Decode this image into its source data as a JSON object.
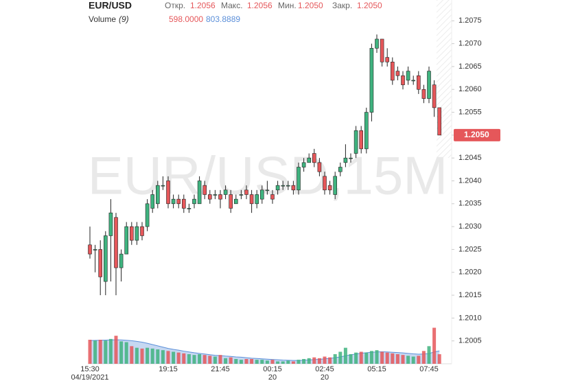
{
  "chart_data": {
    "type": "candlestick",
    "symbol": "EUR/USD",
    "watermark": "EUR/USD,15M",
    "header": {
      "open_label": "Откр.",
      "open": "1.2056",
      "high_label": "Макс.",
      "high": "1.2056",
      "low_label": "Мин.",
      "low": "1.2050",
      "close_label": "Закр.",
      "close": "1.2050",
      "volume_name": "Volume",
      "volume_period": "(9)",
      "volume_value": "598.0000",
      "volume_ma": "803.8889"
    },
    "categories": [
      "15:30",
      null,
      null,
      null,
      null,
      null,
      null,
      null,
      null,
      null,
      null,
      null,
      null,
      null,
      null,
      "19:15",
      null,
      null,
      null,
      null,
      null,
      null,
      null,
      null,
      null,
      "21:45",
      null,
      null,
      null,
      null,
      null,
      null,
      null,
      null,
      null,
      "00:15",
      null,
      null,
      null,
      null,
      null,
      null,
      null,
      null,
      null,
      "02:45",
      null,
      null,
      null,
      null,
      null,
      null,
      null,
      null,
      null,
      "05:15",
      null,
      null,
      null,
      null,
      null,
      null,
      null,
      null,
      null,
      "07:45",
      null,
      null
    ],
    "category_dates": [
      "04/19/2021",
      null,
      null,
      null,
      null,
      null,
      null,
      null,
      null,
      null,
      null,
      null,
      null,
      null,
      null,
      null,
      null,
      null,
      null,
      null,
      null,
      null,
      null,
      null,
      null,
      null,
      null,
      null,
      null,
      null,
      null,
      null,
      null,
      null,
      null,
      "20",
      null,
      null,
      null,
      null,
      null,
      null,
      null,
      null,
      null,
      "20",
      null,
      null,
      null,
      null,
      null,
      null,
      null,
      null,
      null,
      null,
      null,
      null,
      null,
      null,
      null,
      null,
      null,
      null,
      null,
      null,
      null,
      null
    ],
    "open": [
      1.2026,
      1.2025,
      1.2025,
      1.2018,
      1.2028,
      1.2032,
      1.2021,
      1.2024,
      1.203,
      1.2027,
      1.203,
      1.203,
      1.2034,
      1.2035,
      1.2039,
      1.204,
      1.2035,
      1.2036,
      1.2036,
      1.2034,
      1.2035,
      1.2035,
      1.2039,
      1.2037,
      1.2037,
      1.2037,
      1.2037,
      1.2037,
      1.2035,
      1.2037,
      1.2038,
      1.2037,
      1.2035,
      1.2036,
      1.2038,
      1.2037,
      1.2038,
      1.2039,
      1.2039,
      1.2039,
      1.2038,
      1.2043,
      1.2044,
      1.2046,
      1.2044,
      1.2041,
      1.2039,
      1.2037,
      1.2042,
      1.2044,
      1.2045,
      1.2046,
      1.2051,
      1.2047,
      1.2055,
      1.2069,
      1.2071,
      1.2067,
      1.2066,
      1.2064,
      1.2063,
      1.2062,
      1.2062,
      1.2063,
      1.206,
      1.2058,
      1.2061,
      1.2056
    ],
    "high": [
      1.203,
      1.2026,
      1.2027,
      1.2029,
      1.2036,
      1.2033,
      1.2025,
      1.2031,
      1.2031,
      1.2031,
      1.2031,
      1.2036,
      1.2038,
      1.204,
      1.2041,
      1.2041,
      1.2037,
      1.2037,
      1.2037,
      1.2035,
      1.2037,
      1.2041,
      1.204,
      1.2038,
      1.2038,
      1.2038,
      1.2039,
      1.2038,
      1.2037,
      1.2038,
      1.2039,
      1.2038,
      1.2038,
      1.2039,
      1.204,
      1.2038,
      1.204,
      1.204,
      1.204,
      1.204,
      1.2044,
      1.2045,
      1.2046,
      1.2047,
      1.2045,
      1.2042,
      1.204,
      1.2042,
      1.2044,
      1.2048,
      1.2046,
      1.2052,
      1.2052,
      1.2056,
      1.207,
      1.2072,
      1.2071,
      1.2069,
      1.2067,
      1.2065,
      1.2064,
      1.2065,
      1.2063,
      1.2064,
      1.2061,
      1.2065,
      1.2062,
      1.2056
    ],
    "low": [
      1.2023,
      1.202,
      1.2015,
      1.2015,
      1.2018,
      1.2015,
      1.2018,
      1.2024,
      1.2026,
      1.2026,
      1.2027,
      1.2029,
      1.2033,
      1.2034,
      1.2038,
      1.2034,
      1.2034,
      1.2034,
      1.2033,
      1.2033,
      1.2034,
      1.2035,
      1.2036,
      1.2035,
      1.2036,
      1.2034,
      1.2036,
      1.2033,
      1.2035,
      1.2036,
      1.2036,
      1.2033,
      1.2034,
      1.2035,
      1.2037,
      1.2035,
      1.2037,
      1.2038,
      1.2038,
      1.2037,
      1.2037,
      1.2042,
      1.2044,
      1.2043,
      1.2041,
      1.2037,
      1.2037,
      1.2036,
      1.2041,
      1.2043,
      1.2044,
      1.2045,
      1.2046,
      1.2046,
      1.2053,
      1.2068,
      1.2065,
      1.2065,
      1.2061,
      1.2062,
      1.206,
      1.2061,
      1.2061,
      1.2059,
      1.2057,
      1.2057,
      1.2054,
      1.205
    ],
    "close": [
      1.2024,
      1.2025,
      1.2019,
      1.2028,
      1.2033,
      1.2021,
      1.2024,
      1.203,
      1.2027,
      1.203,
      1.2028,
      1.2035,
      1.2037,
      1.2039,
      1.2039,
      1.2035,
      1.2036,
      1.2035,
      1.2034,
      1.2034,
      1.2036,
      1.204,
      1.2037,
      1.2036,
      1.2037,
      1.2036,
      1.2038,
      1.2034,
      1.2036,
      1.2037,
      1.2037,
      1.2035,
      1.2037,
      1.2038,
      1.2038,
      1.2036,
      1.2039,
      1.2039,
      1.2039,
      1.2038,
      1.2043,
      1.2044,
      1.2045,
      1.2044,
      1.2042,
      1.2038,
      1.2038,
      1.2041,
      1.2043,
      1.2045,
      1.2045,
      1.2051,
      1.2047,
      1.2055,
      1.2069,
      1.2071,
      1.2066,
      1.2066,
      1.2062,
      1.2063,
      1.2061,
      1.2064,
      1.2062,
      1.206,
      1.2058,
      1.2064,
      1.2056,
      1.205
    ],
    "volume": [
      1500,
      1450,
      1500,
      1450,
      1550,
      1750,
      1400,
      1350,
      1100,
      1000,
      950,
      1000,
      950,
      900,
      850,
      800,
      750,
      700,
      650,
      600,
      550,
      600,
      550,
      500,
      450,
      550,
      350,
      400,
      300,
      250,
      300,
      300,
      250,
      250,
      200,
      250,
      150,
      150,
      200,
      150,
      250,
      300,
      350,
      400,
      350,
      450,
      400,
      600,
      750,
      1000,
      600,
      700,
      750,
      700,
      800,
      850,
      750,
      700,
      650,
      600,
      550,
      500,
      450,
      500,
      800,
      1100,
      2250,
      598
    ],
    "volume_ma": [
      1450,
      1460,
      1470,
      1480,
      1490,
      1500,
      1490,
      1470,
      1440,
      1400,
      1350,
      1280,
      1200,
      1120,
      1040,
      960,
      900,
      850,
      790,
      740,
      690,
      650,
      610,
      570,
      530,
      510,
      480,
      460,
      430,
      410,
      380,
      350,
      330,
      310,
      290,
      270,
      250,
      230,
      220,
      210,
      210,
      220,
      240,
      260,
      280,
      310,
      340,
      380,
      430,
      500,
      560,
      610,
      660,
      690,
      720,
      740,
      750,
      740,
      720,
      700,
      680,
      650,
      620,
      600,
      610,
      640,
      740,
      803.8889
    ],
    "volume_lim": [
      0,
      2400
    ],
    "up_color": "#3fb37f",
    "down_color": "#e5575a",
    "ma_color": "#5b8fd9",
    "ylim": [
      1.2,
      1.208
    ],
    "yticks": [
      1.2075,
      {
        "value": 1.207,
        "label": "1.2070"
      },
      1.2065,
      {
        "value": 1.206,
        "label": "1.2060"
      },
      1.2055,
      {
        "value": 1.205,
        "label": "1.2050"
      },
      1.2045,
      {
        "value": 1.204,
        "label": "1.2040"
      },
      1.2035,
      {
        "value": 1.203,
        "label": "1.2030"
      },
      1.2025,
      {
        "value": 1.202,
        "label": "1.2020"
      },
      1.2015,
      {
        "value": 1.201,
        "label": "1.2010"
      },
      1.2005
    ],
    "last_price": {
      "value": 1.205,
      "label": "1.2050"
    }
  }
}
